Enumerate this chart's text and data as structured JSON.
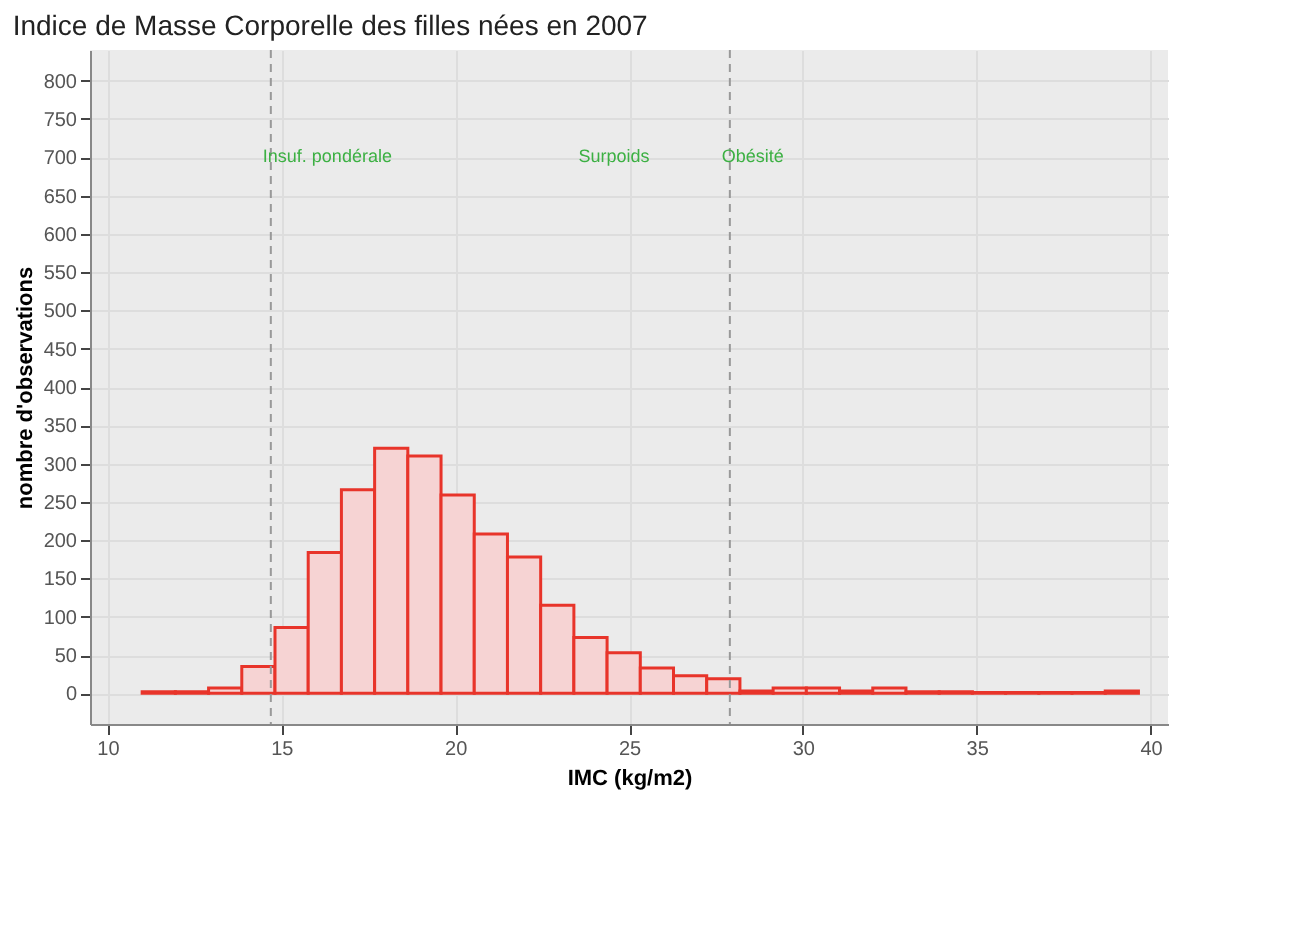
{
  "chart_data": {
    "type": "histogram",
    "title": "Indice de Masse Corporelle des filles nées en 2007",
    "xlabel": "IMC (kg/m2)",
    "ylabel": "nombre d'observations",
    "bins": [
      11,
      11.955,
      12.91,
      13.865,
      14.82,
      15.775,
      16.73,
      17.685,
      18.64,
      19.595,
      20.55,
      21.505,
      22.46,
      23.415,
      24.37,
      25.325,
      26.28,
      27.235,
      28.19,
      29.145,
      30.1,
      31.055,
      32.01,
      32.965,
      33.92,
      34.875,
      35.83,
      36.785,
      37.74,
      38.695,
      39.65
    ],
    "values": [
      2,
      2,
      7,
      35,
      86,
      184,
      266,
      320,
      310,
      259,
      208,
      178,
      115,
      73,
      53,
      33,
      23,
      19,
      3,
      7,
      7,
      3,
      7,
      2,
      2,
      1,
      1,
      1,
      1,
      3
    ],
    "color": "#f6d3d3",
    "xlim": [
      9.5,
      40.5
    ],
    "xticks": [
      10,
      15,
      20,
      25,
      30,
      35,
      40
    ],
    "ylim": [
      -40,
      840
    ],
    "yticks": [
      0,
      50,
      100,
      150,
      200,
      250,
      300,
      350,
      400,
      450,
      500,
      550,
      600,
      650,
      700,
      750,
      800
    ],
    "grid": true,
    "ref_lines": [
      {
        "axis": "x",
        "value": 14.7,
        "color": "#999999",
        "line_style": "dashed",
        "label": "Insuf. pondérale"
      },
      {
        "axis": "x",
        "value": 27.9,
        "color": "#999999",
        "line_style": "dashed",
        "label": "Obésité"
      }
    ],
    "annotations": [
      "Surpoids"
    ]
  }
}
